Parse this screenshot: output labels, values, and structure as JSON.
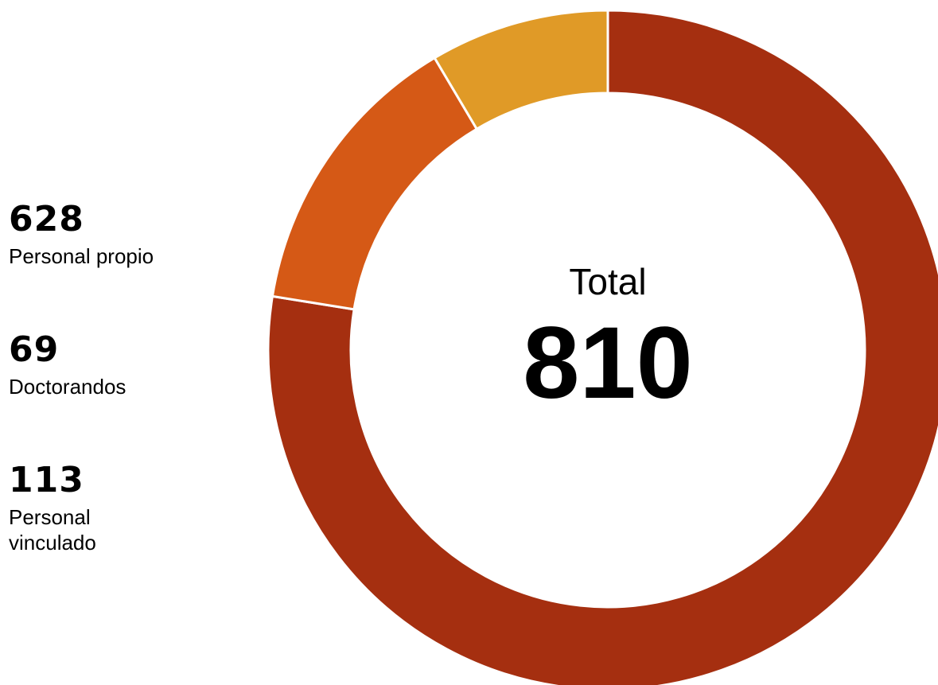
{
  "chart_data": {
    "type": "pie",
    "variant": "donut",
    "total_label": "Total",
    "total_value": "810",
    "start_angle_deg": 0,
    "direction": "clockwise",
    "slices": [
      {
        "value": 628,
        "value_text": "628",
        "label": "Personal propio",
        "color": "#A52F10"
      },
      {
        "value": 113,
        "value_text": "113",
        "label": "Personal vinculado",
        "label_lines": [
          "Personal",
          "vinculado"
        ],
        "color": "#D55916"
      },
      {
        "value": 69,
        "value_text": "69",
        "label": "Doctorandos",
        "color": "#E09A27"
      }
    ],
    "legend_order": [
      0,
      2,
      1
    ],
    "slice_separator_color": "#FFFFFF"
  }
}
